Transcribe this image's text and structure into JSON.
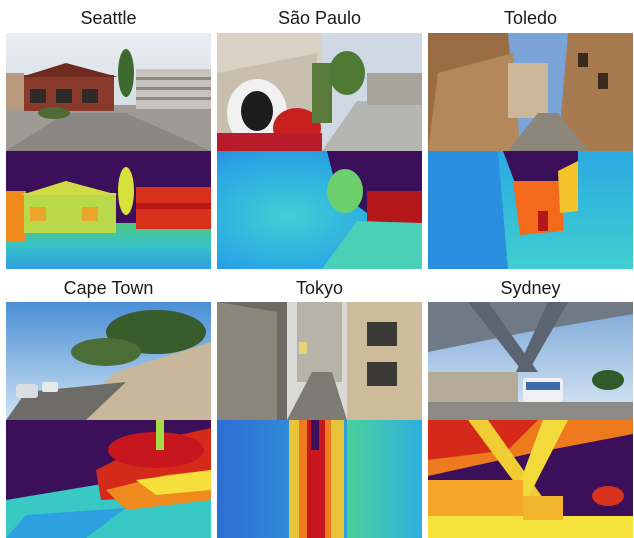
{
  "figure": {
    "cities": [
      {
        "name": "Seattle"
      },
      {
        "name": "São Paulo"
      },
      {
        "name": "Toledo"
      },
      {
        "name": "Cape Town"
      },
      {
        "name": "Tokyo"
      },
      {
        "name": "Sydney"
      }
    ]
  },
  "colors": {
    "sky_far": "#3b0f5a",
    "near_cyan": "#33c9c9",
    "mid_yellow": "#f5e33b",
    "near_red": "#c81414"
  }
}
